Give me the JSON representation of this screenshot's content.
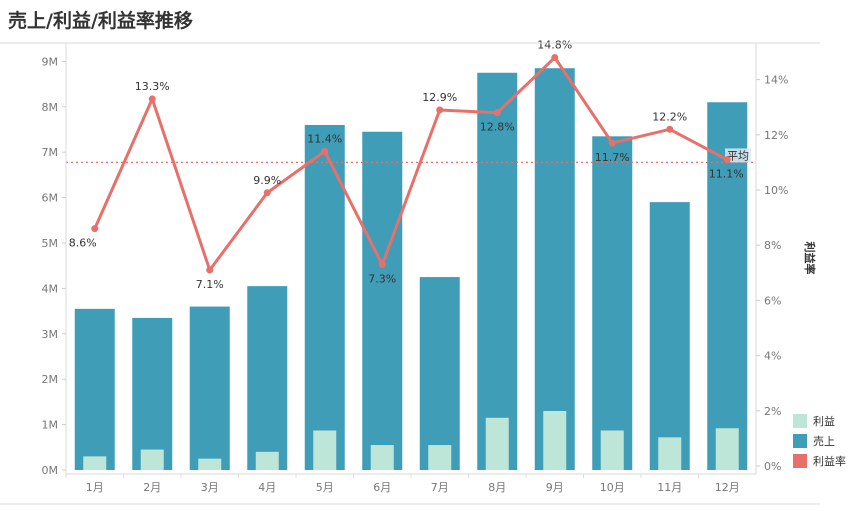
{
  "title": "売上/利益/利益率推移",
  "chart_data": {
    "type": "bar",
    "categories": [
      "1月",
      "2月",
      "3月",
      "4月",
      "5月",
      "6月",
      "7月",
      "8月",
      "9月",
      "10月",
      "11月",
      "12月"
    ],
    "series": [
      {
        "name": "売上",
        "type": "bar",
        "values": [
          3.55,
          3.35,
          3.6,
          4.05,
          7.6,
          7.45,
          4.25,
          8.75,
          8.85,
          7.35,
          5.9,
          8.1
        ]
      },
      {
        "name": "利益",
        "type": "bar",
        "values": [
          0.3,
          0.45,
          0.25,
          0.4,
          0.87,
          0.55,
          0.55,
          1.15,
          1.3,
          0.87,
          0.72,
          0.92
        ]
      },
      {
        "name": "利益率",
        "type": "line",
        "axis": "right",
        "values": [
          8.6,
          13.3,
          7.1,
          9.9,
          11.4,
          7.3,
          12.9,
          12.8,
          14.8,
          11.7,
          12.2,
          11.1
        ]
      }
    ],
    "data_labels": [
      "8.6%",
      "13.3%",
      "7.1%",
      "9.9%",
      "11.4%",
      "7.3%",
      "12.9%",
      "12.8%",
      "14.8%",
      "11.7%",
      "12.2%",
      "11.1%"
    ],
    "left_axis": {
      "ticks": [
        0,
        1,
        2,
        3,
        4,
        5,
        6,
        7,
        8,
        9
      ],
      "tick_labels": [
        "0M",
        "1M",
        "2M",
        "3M",
        "4M",
        "5M",
        "6M",
        "7M",
        "8M",
        "9M"
      ],
      "ylim": [
        0,
        9.3
      ]
    },
    "right_axis": {
      "label": "利益率",
      "ticks": [
        0,
        2,
        4,
        6,
        8,
        10,
        12,
        14
      ],
      "tick_labels": [
        "0%",
        "2%",
        "4%",
        "6%",
        "8%",
        "10%",
        "12%",
        "14%"
      ],
      "ylim": [
        0,
        16.6
      ]
    },
    "reference_line": {
      "label": "平均",
      "value": 11.0,
      "axis": "right"
    },
    "legend": {
      "position": "bottom-right",
      "items": [
        {
          "label": "利益",
          "color": "#bde5d8"
        },
        {
          "label": "売上",
          "color": "#3f9db7"
        },
        {
          "label": "利益率",
          "color": "#e8706b"
        }
      ]
    },
    "colors": {
      "sales": "#3f9db7",
      "profit": "#bde5d8",
      "rate": "#e8706b",
      "avg": "#e8706b"
    }
  }
}
